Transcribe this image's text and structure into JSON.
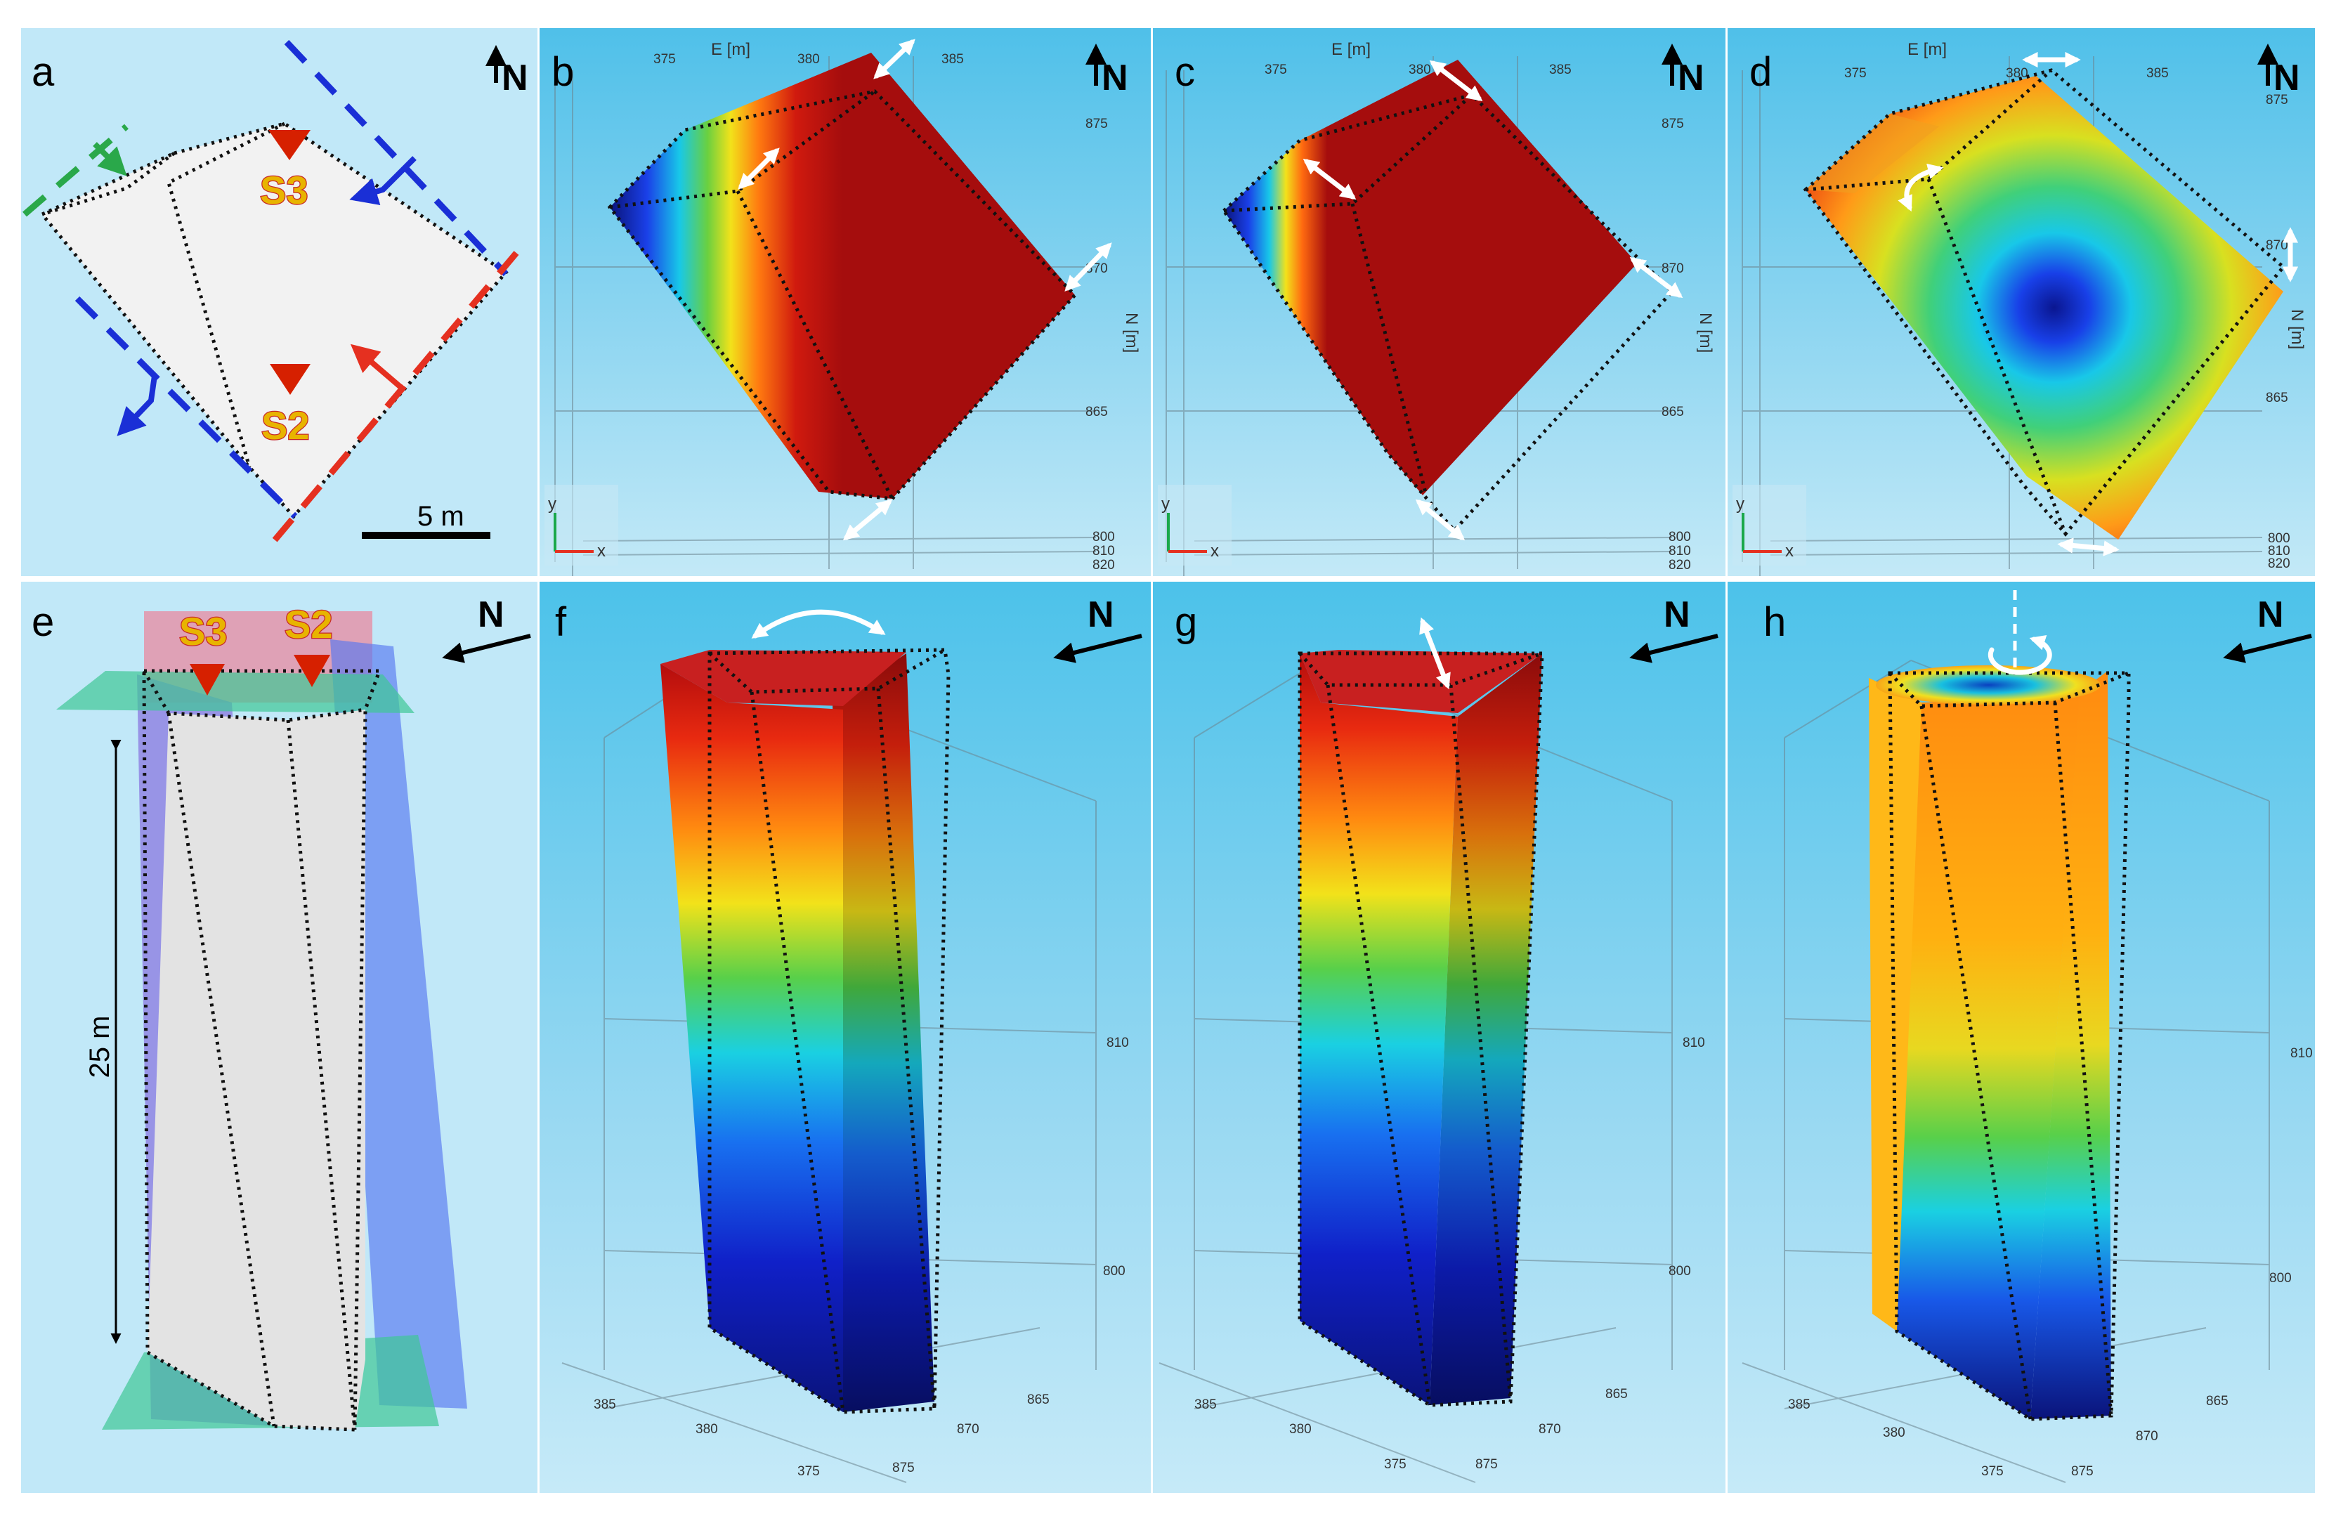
{
  "panels": {
    "a": {
      "letter": "a",
      "north": "N",
      "stations": [
        "S3",
        "S2"
      ],
      "scale_bar": "5 m"
    },
    "b": {
      "letter": "b",
      "north": "N",
      "axis_top": "E [m]",
      "axis_right": "N [m]",
      "e_ticks": [
        "375",
        "380",
        "385"
      ],
      "n_ticks": [
        "875",
        "870",
        "865"
      ],
      "z_ticks": [
        "800",
        "810",
        "820"
      ],
      "triad": [
        "y",
        "x"
      ]
    },
    "c": {
      "letter": "c",
      "north": "N",
      "axis_top": "E [m]",
      "axis_right": "N [m]",
      "e_ticks": [
        "375",
        "380",
        "385"
      ],
      "n_ticks": [
        "875",
        "870",
        "865"
      ],
      "z_ticks": [
        "800",
        "810",
        "820"
      ],
      "triad": [
        "y",
        "x"
      ]
    },
    "d": {
      "letter": "d",
      "north": "N",
      "axis_top": "E [m]",
      "axis_right": "N [m]",
      "e_ticks": [
        "375",
        "380",
        "385"
      ],
      "n_ticks": [
        "875",
        "870",
        "865"
      ],
      "z_ticks": [
        "800",
        "810",
        "820"
      ],
      "triad": [
        "y",
        "x"
      ]
    },
    "e": {
      "letter": "e",
      "north": "N",
      "stations": [
        "S3",
        "S2"
      ],
      "height_label": "25 m"
    },
    "f": {
      "letter": "f",
      "north": "N",
      "z_ticks": [
        "810",
        "800"
      ],
      "e_ticks": [
        "385",
        "380",
        "375"
      ],
      "n_ticks": [
        "865",
        "870",
        "875"
      ]
    },
    "g": {
      "letter": "g",
      "north": "N",
      "z_ticks": [
        "810",
        "800"
      ],
      "e_ticks": [
        "385",
        "380",
        "375"
      ],
      "n_ticks": [
        "865",
        "870",
        "875"
      ]
    },
    "h": {
      "letter": "h",
      "north": "N",
      "z_ticks": [
        "810",
        "800"
      ],
      "e_ticks": [
        "385",
        "380",
        "375"
      ],
      "n_ticks": [
        "865",
        "870",
        "875"
      ]
    }
  },
  "colors": {
    "panel_bg_light": "#bfe6f6",
    "panel_bg_sky": "#5cc5ea",
    "mode_red": "#a50d0d",
    "station_marker": "#d62000",
    "discontinuity_green": "#2aa84a",
    "discontinuity_blue": "#1a2fd6",
    "discontinuity_red": "#e53020"
  }
}
